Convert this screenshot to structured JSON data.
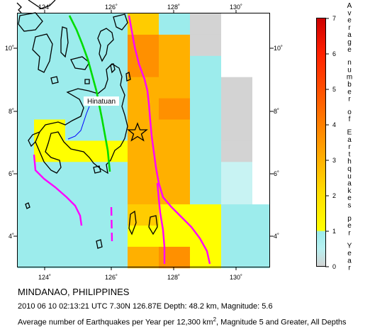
{
  "title": "MINDANAO, PHILIPPINES",
  "event": "2010 06 10 02:13:21 UTC 7.30N 126.87E Depth: 48.2 km, Magnitude: 5.6",
  "avg_prefix": "Average number of Earthquakes per Year per 12,300 km",
  "avg_sup": "2",
  "avg_suffix": ", Magnitude 5 and Greater, All Depths",
  "city_label": "Hinatuan",
  "lon_ticks": [
    "124˚",
    "126˚",
    "128˚",
    "130˚"
  ],
  "lat_ticks": [
    "4˚",
    "6˚",
    "8˚",
    "10˚"
  ],
  "legend": {
    "title": "Average number of Earthquakes per Year",
    "ticks": [
      "0",
      "1",
      "2",
      "3",
      "4",
      "5",
      "6",
      "7"
    ]
  },
  "colors": {
    "c0": "#d3d3d3",
    "c05": "#c8f3f3",
    "c1": "#9cecec",
    "c2": "#ffff00",
    "c25": "#ffcc00",
    "c3": "#ffb000",
    "c4": "#ff9000",
    "plate": "#ff00ff",
    "fault": "#00dd00",
    "river": "#0000ff"
  },
  "grid": [
    [
      "c1",
      "c1",
      "c1",
      "c1",
      "c25",
      "c1",
      "c0",
      "w",
      "w",
      "w"
    ],
    [
      "c1",
      "c1",
      "c1",
      "c1",
      "c4",
      "c3",
      "c0",
      "w",
      "w",
      "w"
    ],
    [
      "c1",
      "c1",
      "c1",
      "c1",
      "c4",
      "c3",
      "c1",
      "w",
      "w",
      "w"
    ],
    [
      "c1",
      "c1",
      "c1",
      "c1",
      "c3",
      "c3",
      "c1",
      "c0",
      "w",
      "w"
    ],
    [
      "c1",
      "c1",
      "c1",
      "c1",
      "c3",
      "c4",
      "c1",
      "c0",
      "w",
      "w"
    ],
    [
      "c1",
      "c2",
      "c1",
      "c1",
      "c3",
      "c3",
      "c1",
      "c0",
      "w",
      "w"
    ],
    [
      "c1",
      "c2",
      "c2",
      "c2",
      "c3",
      "c3",
      "c1",
      "c0",
      "w",
      "w"
    ],
    [
      "c1",
      "c1",
      "c1",
      "c1",
      "c3",
      "c3",
      "c1",
      "c05",
      "w",
      "w"
    ],
    [
      "c1",
      "c1",
      "c1",
      "c1",
      "c3",
      "c3",
      "c1",
      "c05",
      "w",
      "w"
    ],
    [
      "c1",
      "c1",
      "c1",
      "c1",
      "c25",
      "c2",
      "c2",
      "c1",
      "c1",
      "w"
    ],
    [
      "c1",
      "c1",
      "c1",
      "c1",
      "c2",
      "c2",
      "c2",
      "c1",
      "c1",
      "c0"
    ],
    [
      "c1",
      "c1",
      "c1",
      "c1",
      "c3",
      "c4",
      "c2",
      "c1",
      "c1",
      "c0"
    ]
  ]
}
